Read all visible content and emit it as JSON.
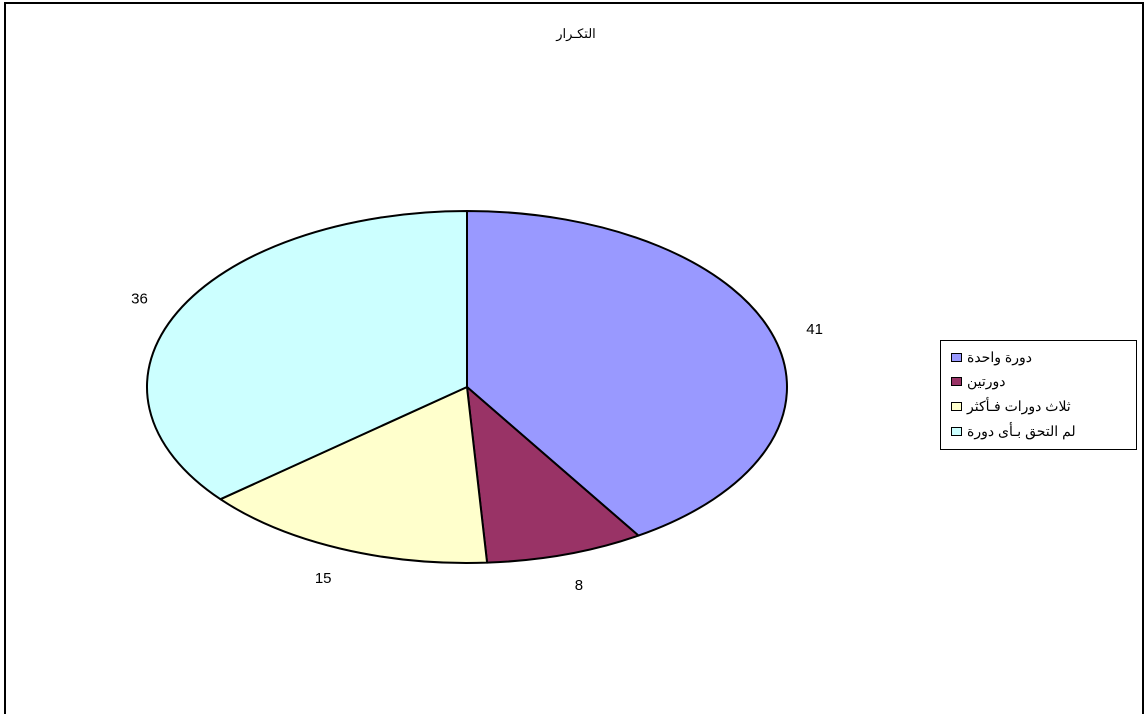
{
  "chart_data": {
    "type": "pie",
    "title": "التكـرار",
    "categories": [
      "دورة واحدة",
      "دورتين",
      "ثلاث دورات فـأكثر",
      "لم التحق بـأى دورة"
    ],
    "values": [
      41,
      8,
      15,
      36
    ],
    "data_labels": [
      "41",
      "8",
      "15",
      "36"
    ],
    "colors": [
      "#9999FF",
      "#993366",
      "#FFFFCC",
      "#CCFFFF"
    ],
    "start_angle": "12 o'clock",
    "direction": "clockwise",
    "legend": {
      "placement": "right",
      "entries": [
        "دورة واحدة",
        "دورتين",
        "ثلاث دورات فـأكثر",
        "لم التحق بـأى دورة"
      ]
    }
  }
}
